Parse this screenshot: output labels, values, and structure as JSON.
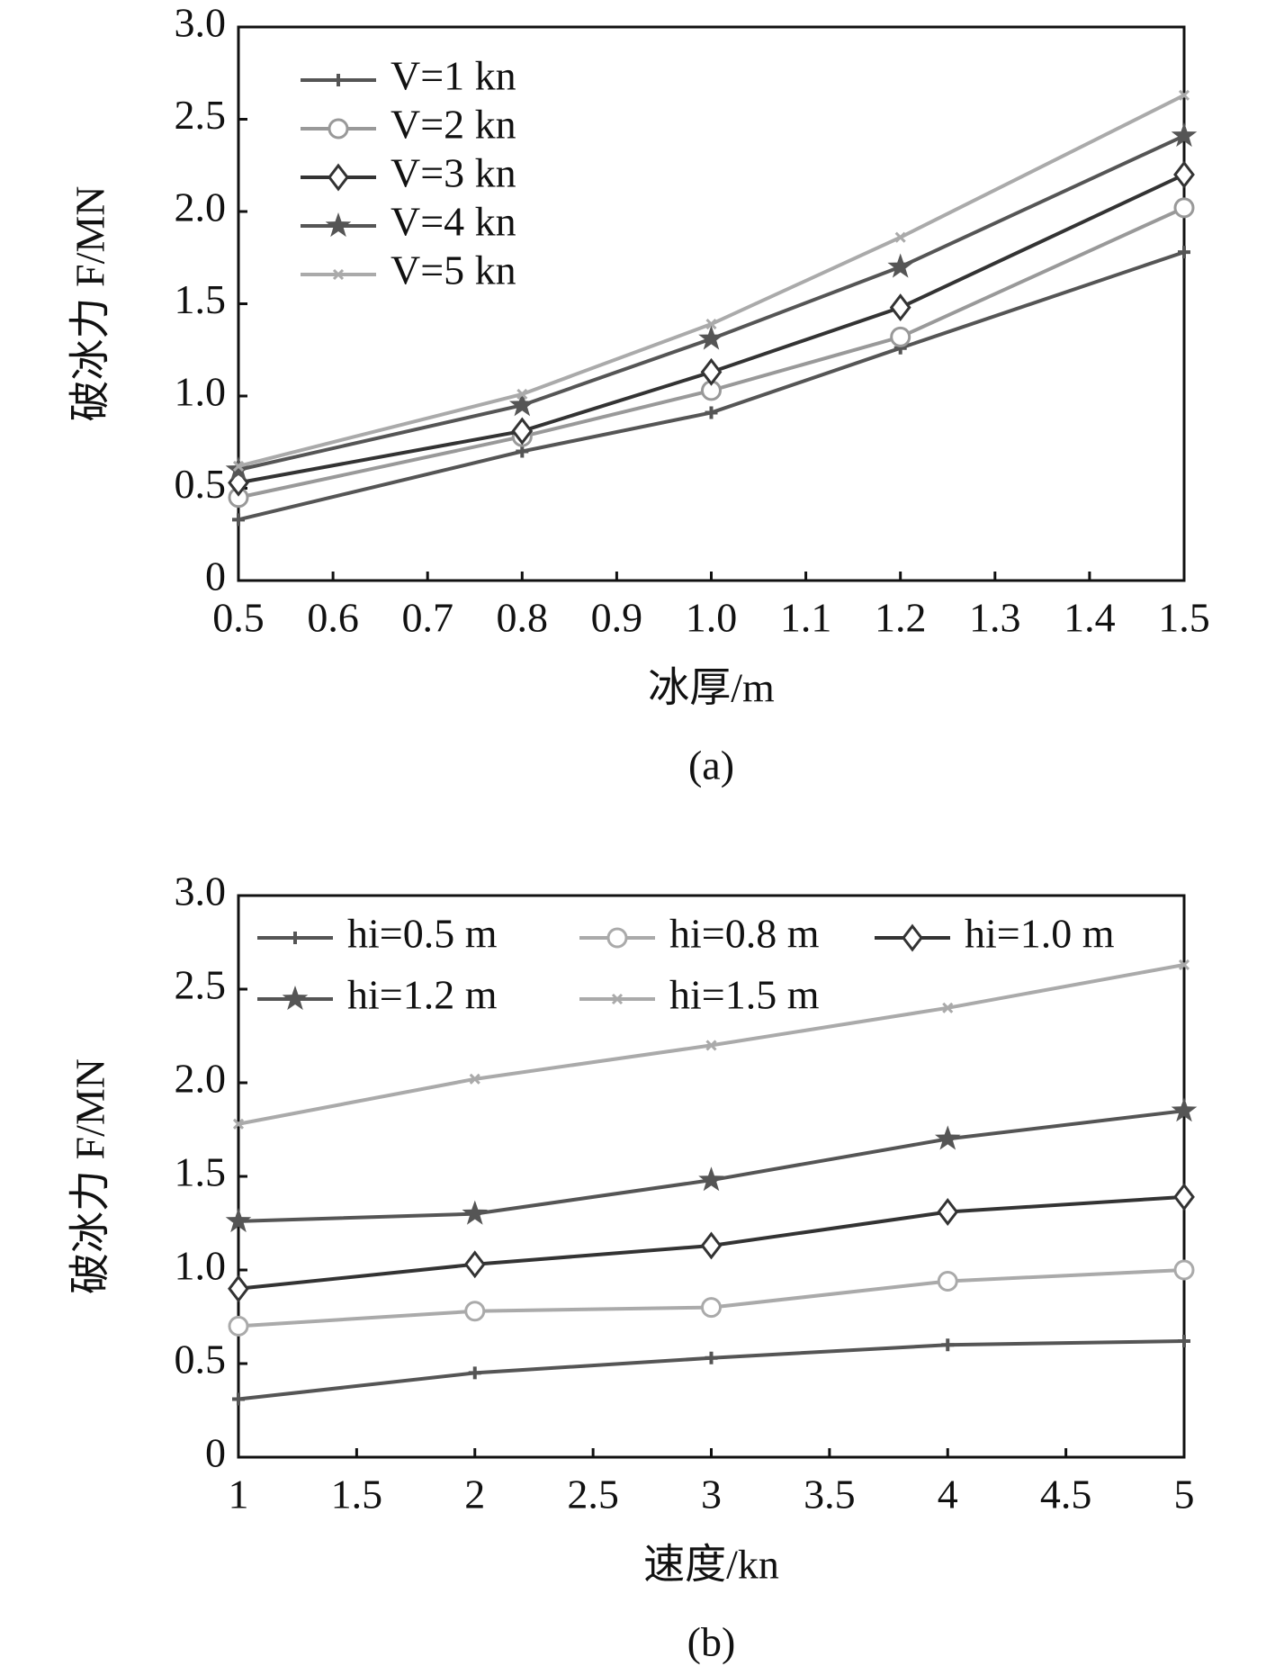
{
  "chart_data": [
    {
      "type": "line",
      "x_label": "冰厚/m",
      "y_label": "破冰力 F/MN",
      "caption": "(a)",
      "x": [
        0.5,
        0.8,
        1.0,
        1.2,
        1.5
      ],
      "xlim": [
        0.5,
        1.5
      ],
      "xticks": [
        0.5,
        0.6,
        0.7,
        0.8,
        0.9,
        {
          "value": 1.0,
          "label": "1.0"
        },
        1.1,
        1.2,
        1.3,
        1.4,
        1.5
      ],
      "ylim": [
        0,
        3.0
      ],
      "yticks": [
        0,
        0.5,
        {
          "value": 1.0,
          "label": "1.0"
        },
        1.5,
        {
          "value": 2.0,
          "label": "2.0"
        },
        2.5,
        {
          "value": 3.0,
          "label": "3.0"
        }
      ],
      "series": [
        {
          "name": "V=1 kn",
          "color": "#555555",
          "marker": "plus",
          "values": [
            0.33,
            0.7,
            0.91,
            1.26,
            1.78
          ]
        },
        {
          "name": "V=2 kn",
          "color": "#999999",
          "marker": "circle",
          "values": [
            0.45,
            0.78,
            1.03,
            1.32,
            2.02
          ]
        },
        {
          "name": "V=3 kn",
          "color": "#333333",
          "marker": "diamond",
          "values": [
            0.53,
            0.81,
            1.13,
            1.48,
            2.2
          ]
        },
        {
          "name": "V=4 kn",
          "color": "#555555",
          "marker": "star",
          "values": [
            0.6,
            0.95,
            1.31,
            1.7,
            2.41
          ]
        },
        {
          "name": "V=5 kn",
          "color": "#aaaaaa",
          "marker": "x",
          "values": [
            0.62,
            1.01,
            1.39,
            1.86,
            2.63
          ]
        }
      ]
    },
    {
      "type": "line",
      "x_label": "速度/kn",
      "y_label": "破冰力 F/MN",
      "caption": "(b)",
      "x": [
        1,
        2,
        3,
        4,
        5
      ],
      "xlim": [
        1,
        5
      ],
      "xticks": [
        1,
        1.5,
        2,
        2.5,
        3,
        3.5,
        4,
        4.5,
        5
      ],
      "ylim": [
        0,
        3.0
      ],
      "yticks": [
        0,
        0.5,
        {
          "value": 1.0,
          "label": "1.0"
        },
        1.5,
        {
          "value": 2.0,
          "label": "2.0"
        },
        2.5,
        {
          "value": 3.0,
          "label": "3.0"
        }
      ],
      "series": [
        {
          "name": "hi=0.5 m",
          "color": "#555555",
          "marker": "plus",
          "values": [
            0.31,
            0.45,
            0.53,
            0.6,
            0.62
          ]
        },
        {
          "name": "hi=0.8 m",
          "color": "#aaaaaa",
          "marker": "circle",
          "values": [
            0.7,
            0.78,
            0.8,
            0.94,
            1.0
          ]
        },
        {
          "name": "hi=1.0 m",
          "color": "#333333",
          "marker": "diamond",
          "values": [
            0.9,
            1.03,
            1.13,
            1.31,
            1.39
          ]
        },
        {
          "name": "hi=1.2 m",
          "color": "#555555",
          "marker": "star",
          "values": [
            1.26,
            1.3,
            1.48,
            1.7,
            1.85
          ]
        },
        {
          "name": "hi=1.5 m",
          "color": "#aaaaaa",
          "marker": "x",
          "values": [
            1.78,
            2.02,
            2.2,
            2.4,
            2.63
          ]
        }
      ]
    }
  ]
}
